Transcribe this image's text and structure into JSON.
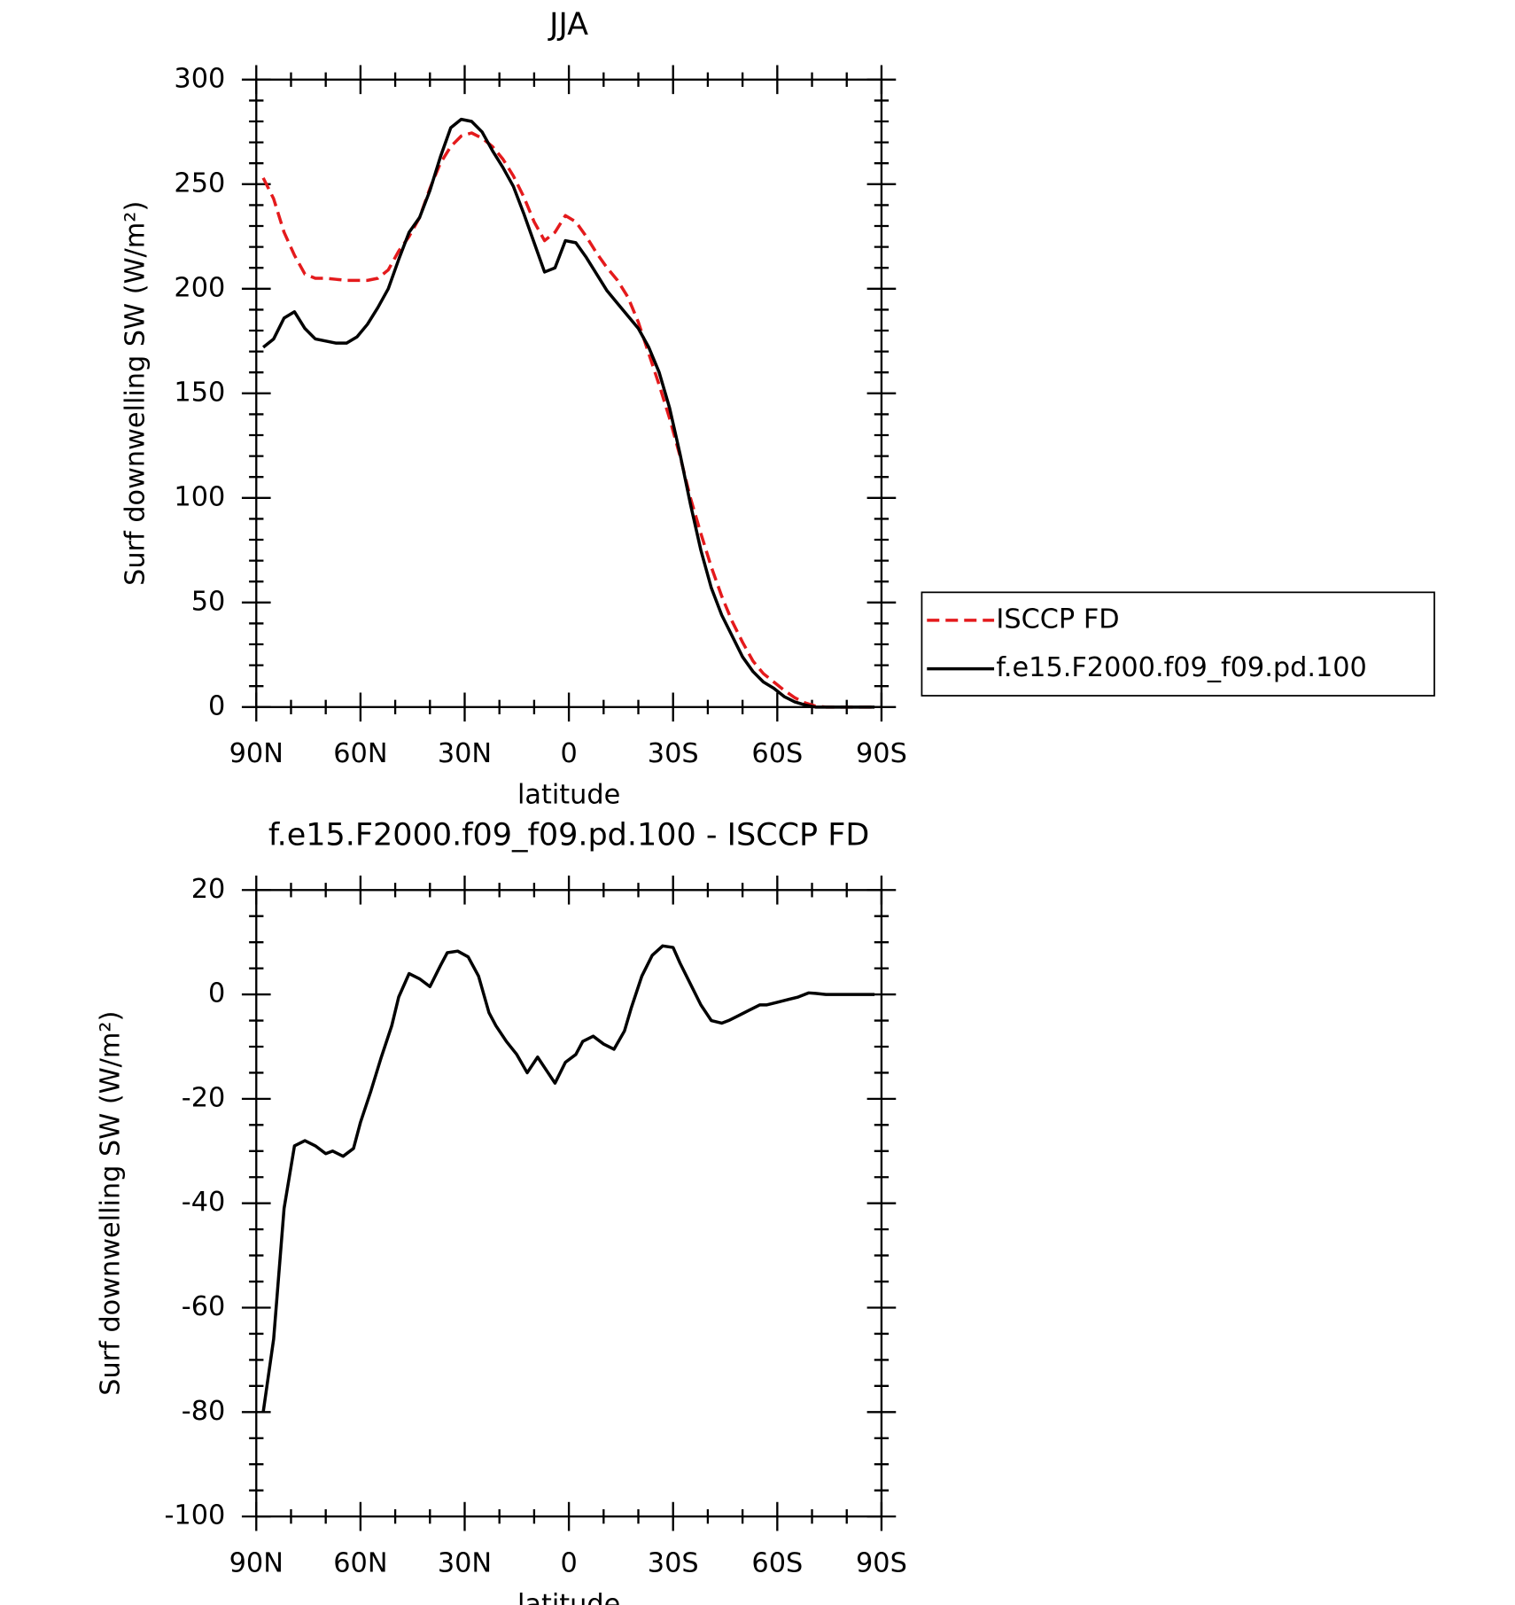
{
  "chart_data": [
    {
      "type": "line",
      "title": "JJA",
      "x_label": "latitude",
      "y_label": "Surf downwelling SW (W/m²)",
      "x": [
        88,
        85,
        82,
        79,
        76,
        73,
        70,
        67,
        64,
        61,
        58,
        55,
        52,
        49,
        46,
        43,
        40,
        37,
        34,
        31,
        28,
        25,
        22,
        19,
        16,
        13,
        10,
        7,
        4,
        1,
        -2,
        -5,
        -8,
        -11,
        -14,
        -17,
        -20,
        -23,
        -26,
        -29,
        -32,
        -35,
        -38,
        -41,
        -44,
        -47,
        -50,
        -53,
        -56,
        -59,
        -62,
        -65,
        -68,
        -71,
        -74,
        -77,
        -80,
        -83,
        -86,
        -88
      ],
      "series": [
        {
          "name": "ISCCP FD",
          "color": "#e41a1c",
          "dashed": true,
          "values": [
            253,
            243,
            227,
            216,
            207,
            205,
            205,
            204.5,
            204,
            204,
            204,
            205,
            209,
            218,
            225,
            234,
            248,
            260,
            268,
            273,
            274.5,
            272,
            268,
            262,
            254,
            244,
            232,
            223,
            227,
            235,
            232,
            225,
            217,
            210,
            204,
            196,
            184,
            169,
            154,
            138,
            120,
            100,
            83,
            67,
            53,
            41,
            31,
            22,
            16,
            12,
            8,
            4.5,
            2,
            0.5,
            0,
            0,
            0,
            0,
            0,
            0
          ]
        },
        {
          "name": "f.e15.F2000.f09_f09.pd.100",
          "color": "#000000",
          "dashed": false,
          "values": [
            172,
            176,
            186,
            189,
            181,
            176,
            175,
            174,
            174,
            177,
            183,
            191,
            200,
            214,
            227,
            234,
            247,
            263,
            277,
            281,
            280,
            275,
            266,
            258,
            249,
            236,
            222,
            208,
            210,
            223,
            222,
            215,
            207,
            199,
            193,
            187,
            181,
            172,
            160,
            143,
            121,
            97,
            75,
            57,
            44,
            34,
            24,
            17,
            12,
            9,
            5,
            2.5,
            1,
            0,
            0,
            0,
            0,
            0,
            0,
            0
          ]
        }
      ],
      "xlim": [
        90,
        -90
      ],
      "xticks": [
        {
          "value": 90,
          "label": "90N"
        },
        {
          "value": 60,
          "label": "60N"
        },
        {
          "value": 30,
          "label": "30N"
        },
        0,
        {
          "value": -30,
          "label": "30S"
        },
        {
          "value": -60,
          "label": "60S"
        },
        {
          "value": -90,
          "label": "90S"
        }
      ],
      "xminorticks": [
        80,
        70,
        50,
        40,
        20,
        10,
        -10,
        -20,
        -40,
        -50,
        -70,
        -80
      ],
      "ylim": [
        0,
        300
      ],
      "yticks": [
        0,
        50,
        100,
        150,
        200,
        250,
        300
      ],
      "yminorticks": [
        10,
        20,
        30,
        40,
        60,
        70,
        80,
        90,
        110,
        120,
        130,
        140,
        160,
        170,
        180,
        190,
        210,
        220,
        230,
        240,
        260,
        270,
        280,
        290
      ],
      "legend": "right"
    },
    {
      "type": "line",
      "title": "f.e15.F2000.f09_f09.pd.100 - ISCCP FD",
      "x_label": "latitude",
      "y_label": "Surf downwelling SW (W/m²)",
      "x": [
        88,
        85,
        82,
        79,
        76,
        73,
        70,
        68,
        65,
        62,
        60,
        57,
        54,
        51,
        49,
        46,
        43,
        40,
        37,
        35,
        32,
        29,
        26,
        23,
        21,
        18,
        15,
        12,
        9,
        7,
        4,
        1,
        -2,
        -4,
        -7,
        -10,
        -13,
        -16,
        -18,
        -21,
        -24,
        -27,
        -30,
        -32,
        -35,
        -38,
        -41,
        -44,
        -46,
        -49,
        -52,
        -55,
        -57,
        -60,
        -63,
        -66,
        -69,
        -71,
        -74,
        -77,
        -80,
        -83,
        -86,
        -88
      ],
      "series": [
        {
          "color": "#000000",
          "dashed": false,
          "values": [
            -80,
            -66,
            -41,
            -29,
            -28,
            -29,
            -30.5,
            -30,
            -31,
            -29.5,
            -24.5,
            -18.5,
            -12,
            -6,
            -0.5,
            4,
            3,
            1.5,
            5.5,
            8,
            8.3,
            7.2,
            3.5,
            -3.5,
            -6,
            -9,
            -11.5,
            -15,
            -12,
            -14,
            -17,
            -13,
            -11.5,
            -9,
            -8,
            -9.5,
            -10.5,
            -7,
            -2.5,
            3.5,
            7.5,
            9.3,
            9,
            6,
            2,
            -2,
            -5,
            -5.5,
            -5,
            -4,
            -3,
            -2,
            -2,
            -1.5,
            -1,
            -0.5,
            0.3,
            0.2,
            0,
            0,
            0,
            0,
            0,
            0
          ]
        }
      ],
      "xlim": [
        90,
        -90
      ],
      "xticks": [
        {
          "value": 90,
          "label": "90N"
        },
        {
          "value": 60,
          "label": "60N"
        },
        {
          "value": 30,
          "label": "30N"
        },
        0,
        {
          "value": -30,
          "label": "30S"
        },
        {
          "value": -60,
          "label": "60S"
        },
        {
          "value": -90,
          "label": "90S"
        }
      ],
      "xminorticks": [
        80,
        70,
        50,
        40,
        20,
        10,
        -10,
        -20,
        -40,
        -50,
        -70,
        -80
      ],
      "ylim": [
        -100,
        20
      ],
      "yticks": [
        -100,
        -80,
        -60,
        -40,
        -20,
        0,
        20
      ],
      "yminorticks": [
        -95,
        -90,
        -85,
        -75,
        -70,
        -65,
        -55,
        -50,
        -45,
        -35,
        -30,
        -25,
        -15,
        -10,
        -5,
        5,
        10,
        15
      ]
    }
  ]
}
